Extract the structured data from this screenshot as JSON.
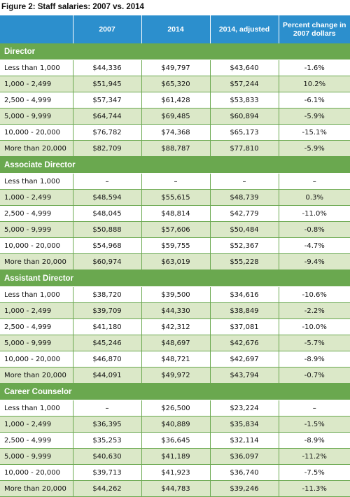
{
  "figure": {
    "title": "Figure 2: Staff salaries: 2007 vs. 2014"
  },
  "table": {
    "headers": [
      "",
      "2007",
      "2014",
      "2014, adjusted",
      "Percent change in 2007 dollars"
    ],
    "sections": [
      {
        "name": "Director",
        "rows": [
          [
            "Less than 1,000",
            "$44,336",
            "$49,797",
            "$43,640",
            "-1.6%"
          ],
          [
            "1,000 - 2,499",
            "$51,945",
            "$65,320",
            "$57,244",
            "10.2%"
          ],
          [
            "2,500 - 4,999",
            "$57,347",
            "$61,428",
            "$53,833",
            "-6.1%"
          ],
          [
            "5,000 - 9,999",
            "$64,744",
            "$69,485",
            "$60,894",
            "-5.9%"
          ],
          [
            "10,000 - 20,000",
            "$76,782",
            "$74,368",
            "$65,173",
            "-15.1%"
          ],
          [
            "More than 20,000",
            "$82,709",
            "$88,787",
            "$77,810",
            "-5.9%"
          ]
        ]
      },
      {
        "name": "Associate Director",
        "rows": [
          [
            "Less than 1,000",
            "–",
            "–",
            "–",
            "–"
          ],
          [
            "1,000 - 2,499",
            "$48,594",
            "$55,615",
            "$48,739",
            "0.3%"
          ],
          [
            "2,500 - 4,999",
            "$48,045",
            "$48,814",
            "$42,779",
            "-11.0%"
          ],
          [
            "5,000 - 9,999",
            "$50,888",
            "$57,606",
            "$50,484",
            "-0.8%"
          ],
          [
            "10,000 - 20,000",
            "$54,968",
            "$59,755",
            "$52,367",
            "-4.7%"
          ],
          [
            "More than 20,000",
            "$60,974",
            "$63,019",
            "$55,228",
            "-9.4%"
          ]
        ]
      },
      {
        "name": "Assistant Director",
        "rows": [
          [
            "Less than 1,000",
            "$38,720",
            "$39,500",
            "$34,616",
            "-10.6%"
          ],
          [
            "1,000 - 2,499",
            "$39,709",
            "$44,330",
            "$38,849",
            "-2.2%"
          ],
          [
            "2,500 - 4,999",
            "$41,180",
            "$42,312",
            "$37,081",
            "-10.0%"
          ],
          [
            "5,000 - 9,999",
            "$45,246",
            "$48,697",
            "$42,676",
            "-5.7%"
          ],
          [
            "10,000 - 20,000",
            "$46,870",
            "$48,721",
            "$42,697",
            "-8.9%"
          ],
          [
            "More than 20,000",
            "$44,091",
            "$49,972",
            "$43,794",
            "-0.7%"
          ]
        ]
      },
      {
        "name": "Career Counselor",
        "rows": [
          [
            "Less than 1,000",
            "–",
            "$26,500",
            "$23,224",
            "–"
          ],
          [
            "1,000 - 2,499",
            "$36,395",
            "$40,889",
            "$35,834",
            "-1.5%"
          ],
          [
            "2,500 - 4,999",
            "$35,253",
            "$36,645",
            "$32,114",
            "-8.9%"
          ],
          [
            "5,000 - 9,999",
            "$40,630",
            "$41,189",
            "$36,097",
            "-11.2%"
          ],
          [
            "10,000 - 20,000",
            "$39,713",
            "$41,923",
            "$36,740",
            "-7.5%"
          ],
          [
            "More than 20,000",
            "$44,262",
            "$44,783",
            "$39,246",
            "-11.3%"
          ]
        ]
      }
    ]
  },
  "colors": {
    "header_blue": "#2c8fcd",
    "section_green": "#6aa84f",
    "stripe_green": "#dbe8c8"
  }
}
